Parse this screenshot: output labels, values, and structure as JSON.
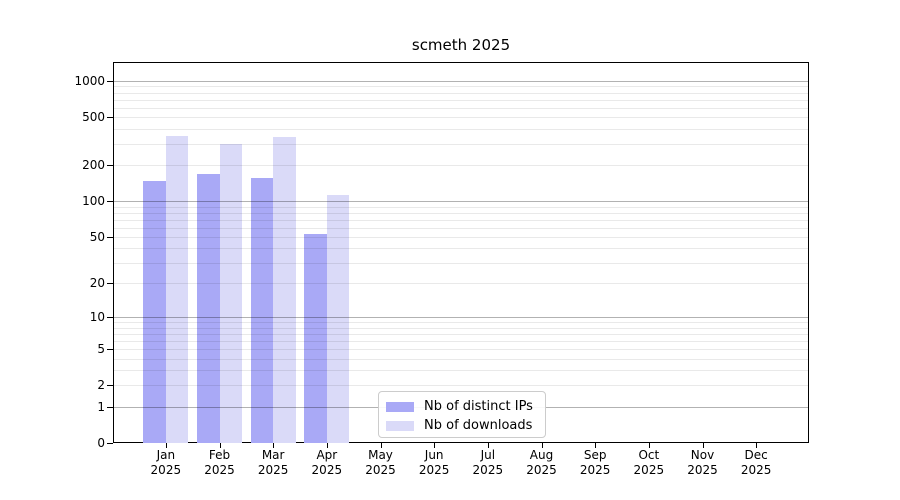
{
  "figure": {
    "title": "scmeth 2025"
  },
  "chart_data": {
    "type": "bar",
    "title": "scmeth 2025",
    "categories": [
      "Jan 2025",
      "Feb 2025",
      "Mar 2025",
      "Apr 2025",
      "May 2025",
      "Jun 2025",
      "Jul 2025",
      "Aug 2025",
      "Sep 2025",
      "Oct 2025",
      "Nov 2025",
      "Dec 2025"
    ],
    "series": [
      {
        "name": "Nb of distinct IPs",
        "color": "#a9a9f6",
        "values": [
          146,
          168,
          156,
          53,
          null,
          null,
          null,
          null,
          null,
          null,
          null,
          null
        ]
      },
      {
        "name": "Nb of downloads",
        "color": "#dadaf8",
        "values": [
          350,
          302,
          340,
          112,
          null,
          null,
          null,
          null,
          null,
          null,
          null,
          null
        ]
      }
    ],
    "yscale": "log1p",
    "yticks": [
      0,
      1,
      2,
      5,
      10,
      20,
      50,
      100,
      200,
      500,
      1000
    ],
    "ylim": [
      0,
      1434
    ],
    "xlabel": "",
    "ylabel": "",
    "grid": "horizontal, major at powers of 10, log minors",
    "legend_position": "lower center"
  },
  "colors": {
    "bar_distinct_ips": "#a9a9f6",
    "bar_downloads": "#dadaf8",
    "grid_major": "#b3b3b3",
    "grid_minor": "#e9e9e9",
    "spine": "#000000",
    "legend_border": "#cccccc",
    "background": "#ffffff"
  }
}
